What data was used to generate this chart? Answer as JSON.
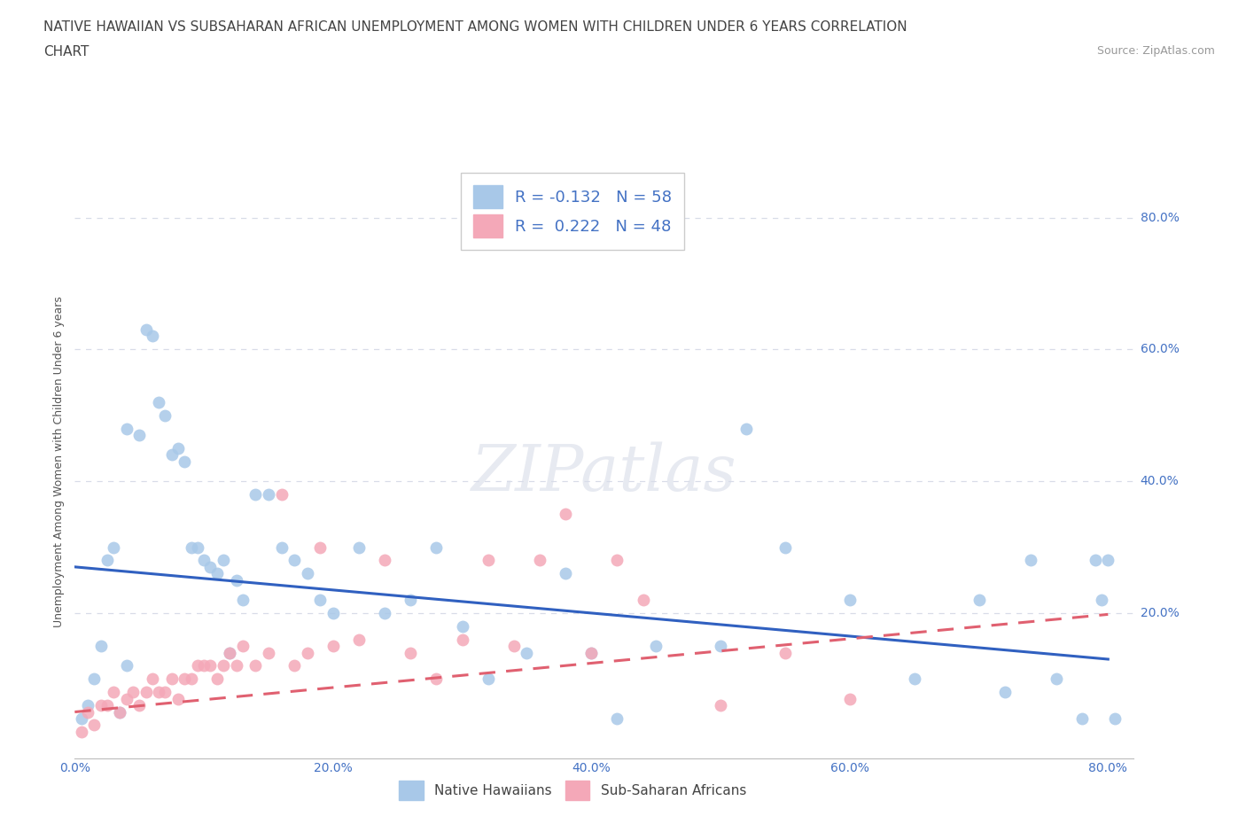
{
  "title_line1": "NATIVE HAWAIIAN VS SUBSAHARAN AFRICAN UNEMPLOYMENT AMONG WOMEN WITH CHILDREN UNDER 6 YEARS CORRELATION",
  "title_line2": "CHART",
  "source_text": "Source: ZipAtlas.com",
  "ylabel": "Unemployment Among Women with Children Under 6 years",
  "xlim": [
    0.0,
    0.82
  ],
  "ylim": [
    -0.02,
    0.88
  ],
  "xticks": [
    0.0,
    0.2,
    0.4,
    0.6,
    0.8
  ],
  "yticks": [
    0.0,
    0.2,
    0.4,
    0.6,
    0.8
  ],
  "xticklabels": [
    "0.0%",
    "20.0%",
    "40.0%",
    "60.0%",
    "80.0%"
  ],
  "yticklabels_right": [
    "20.0%",
    "40.0%",
    "60.0%",
    "80.0%"
  ],
  "blue_color": "#a8c8e8",
  "pink_color": "#f4a8b8",
  "blue_line_color": "#3060c0",
  "pink_line_color": "#e06070",
  "grid_color": "#d8dce8",
  "background_color": "#ffffff",
  "title_fontsize": 11,
  "axis_label_fontsize": 9,
  "tick_fontsize": 10,
  "blue_x": [
    0.005,
    0.01,
    0.015,
    0.02,
    0.025,
    0.03,
    0.035,
    0.04,
    0.04,
    0.05,
    0.055,
    0.06,
    0.065,
    0.07,
    0.075,
    0.08,
    0.085,
    0.09,
    0.095,
    0.1,
    0.105,
    0.11,
    0.115,
    0.12,
    0.125,
    0.13,
    0.14,
    0.15,
    0.16,
    0.17,
    0.18,
    0.19,
    0.2,
    0.22,
    0.24,
    0.26,
    0.28,
    0.3,
    0.32,
    0.35,
    0.38,
    0.4,
    0.42,
    0.45,
    0.5,
    0.52,
    0.55,
    0.6,
    0.65,
    0.7,
    0.72,
    0.74,
    0.76,
    0.78,
    0.79,
    0.795,
    0.8,
    0.805
  ],
  "blue_y": [
    0.04,
    0.06,
    0.1,
    0.15,
    0.28,
    0.3,
    0.05,
    0.12,
    0.48,
    0.47,
    0.63,
    0.62,
    0.52,
    0.5,
    0.44,
    0.45,
    0.43,
    0.3,
    0.3,
    0.28,
    0.27,
    0.26,
    0.28,
    0.14,
    0.25,
    0.22,
    0.38,
    0.38,
    0.3,
    0.28,
    0.26,
    0.22,
    0.2,
    0.3,
    0.2,
    0.22,
    0.3,
    0.18,
    0.1,
    0.14,
    0.26,
    0.14,
    0.04,
    0.15,
    0.15,
    0.48,
    0.3,
    0.22,
    0.1,
    0.22,
    0.08,
    0.28,
    0.1,
    0.04,
    0.28,
    0.22,
    0.28,
    0.04
  ],
  "pink_x": [
    0.005,
    0.01,
    0.015,
    0.02,
    0.025,
    0.03,
    0.035,
    0.04,
    0.045,
    0.05,
    0.055,
    0.06,
    0.065,
    0.07,
    0.075,
    0.08,
    0.085,
    0.09,
    0.095,
    0.1,
    0.105,
    0.11,
    0.115,
    0.12,
    0.125,
    0.13,
    0.14,
    0.15,
    0.16,
    0.17,
    0.18,
    0.19,
    0.2,
    0.22,
    0.24,
    0.26,
    0.28,
    0.3,
    0.32,
    0.34,
    0.36,
    0.38,
    0.4,
    0.42,
    0.44,
    0.5,
    0.55,
    0.6
  ],
  "pink_y": [
    0.02,
    0.05,
    0.03,
    0.06,
    0.06,
    0.08,
    0.05,
    0.07,
    0.08,
    0.06,
    0.08,
    0.1,
    0.08,
    0.08,
    0.1,
    0.07,
    0.1,
    0.1,
    0.12,
    0.12,
    0.12,
    0.1,
    0.12,
    0.14,
    0.12,
    0.15,
    0.12,
    0.14,
    0.38,
    0.12,
    0.14,
    0.3,
    0.15,
    0.16,
    0.28,
    0.14,
    0.1,
    0.16,
    0.28,
    0.15,
    0.28,
    0.35,
    0.14,
    0.28,
    0.22,
    0.06,
    0.14,
    0.07
  ]
}
